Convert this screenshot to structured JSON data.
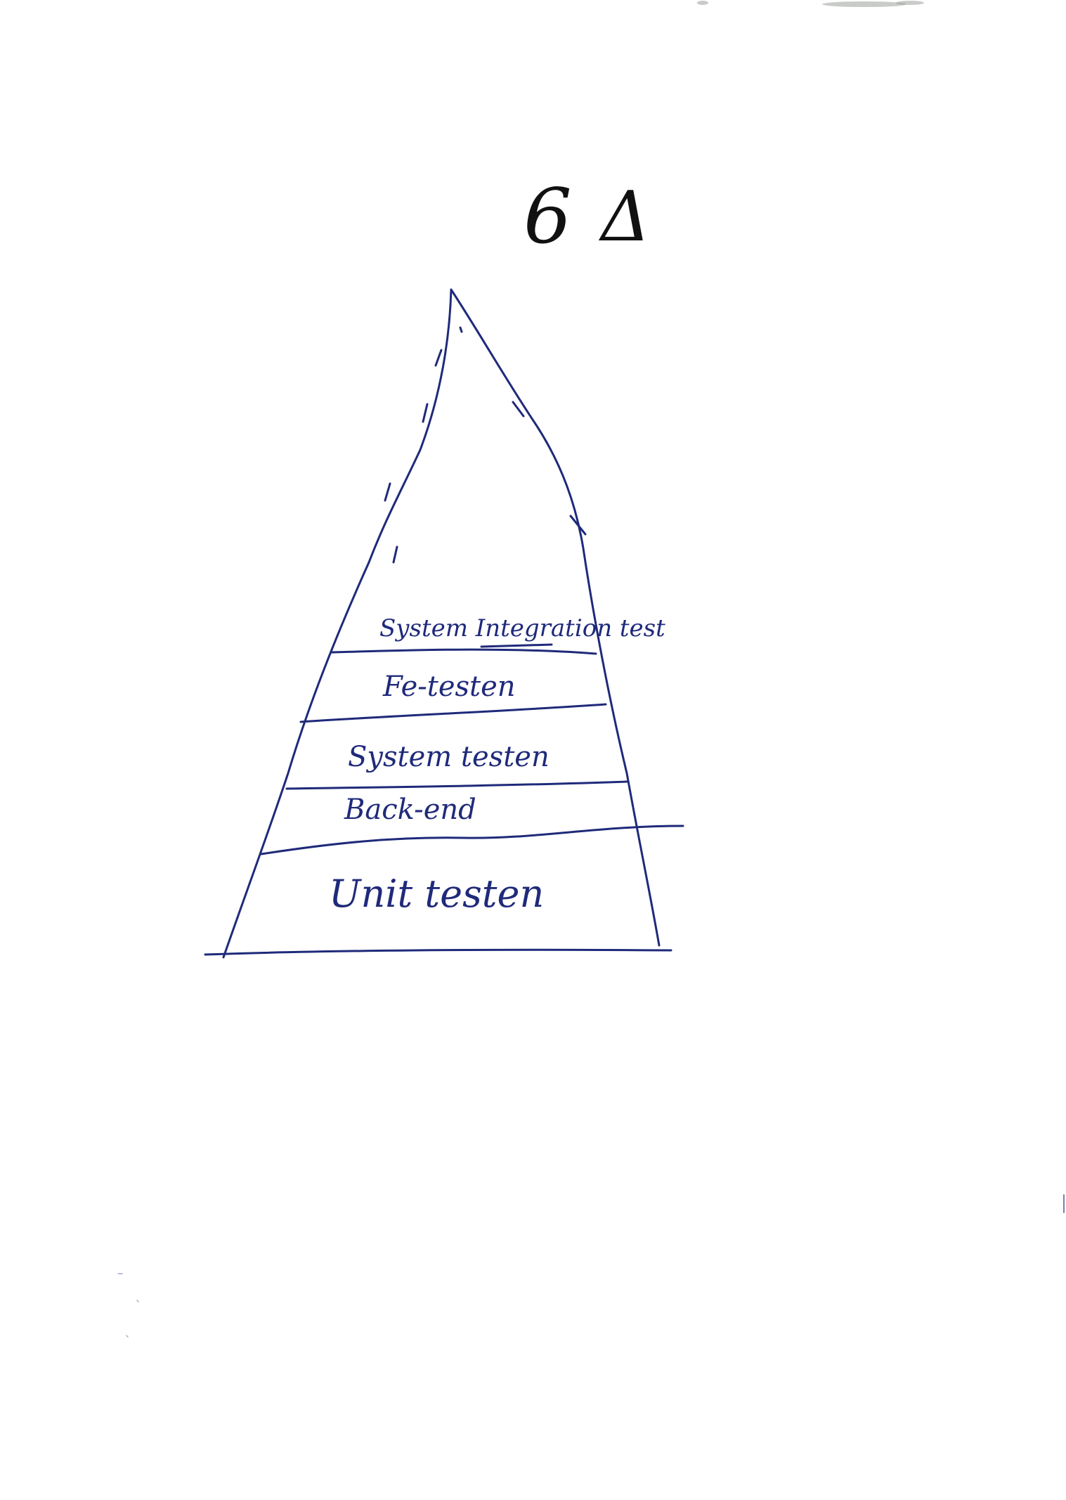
{
  "diagram": {
    "title_number": "6",
    "title_symbol": "Δ",
    "layers_top_to_bottom": [
      "System Integration test",
      "Fe-testen",
      "System testen",
      "Back-end",
      "Unit testen"
    ],
    "ink_color": "#1f2a7a",
    "title_ink_color": "#111111"
  }
}
